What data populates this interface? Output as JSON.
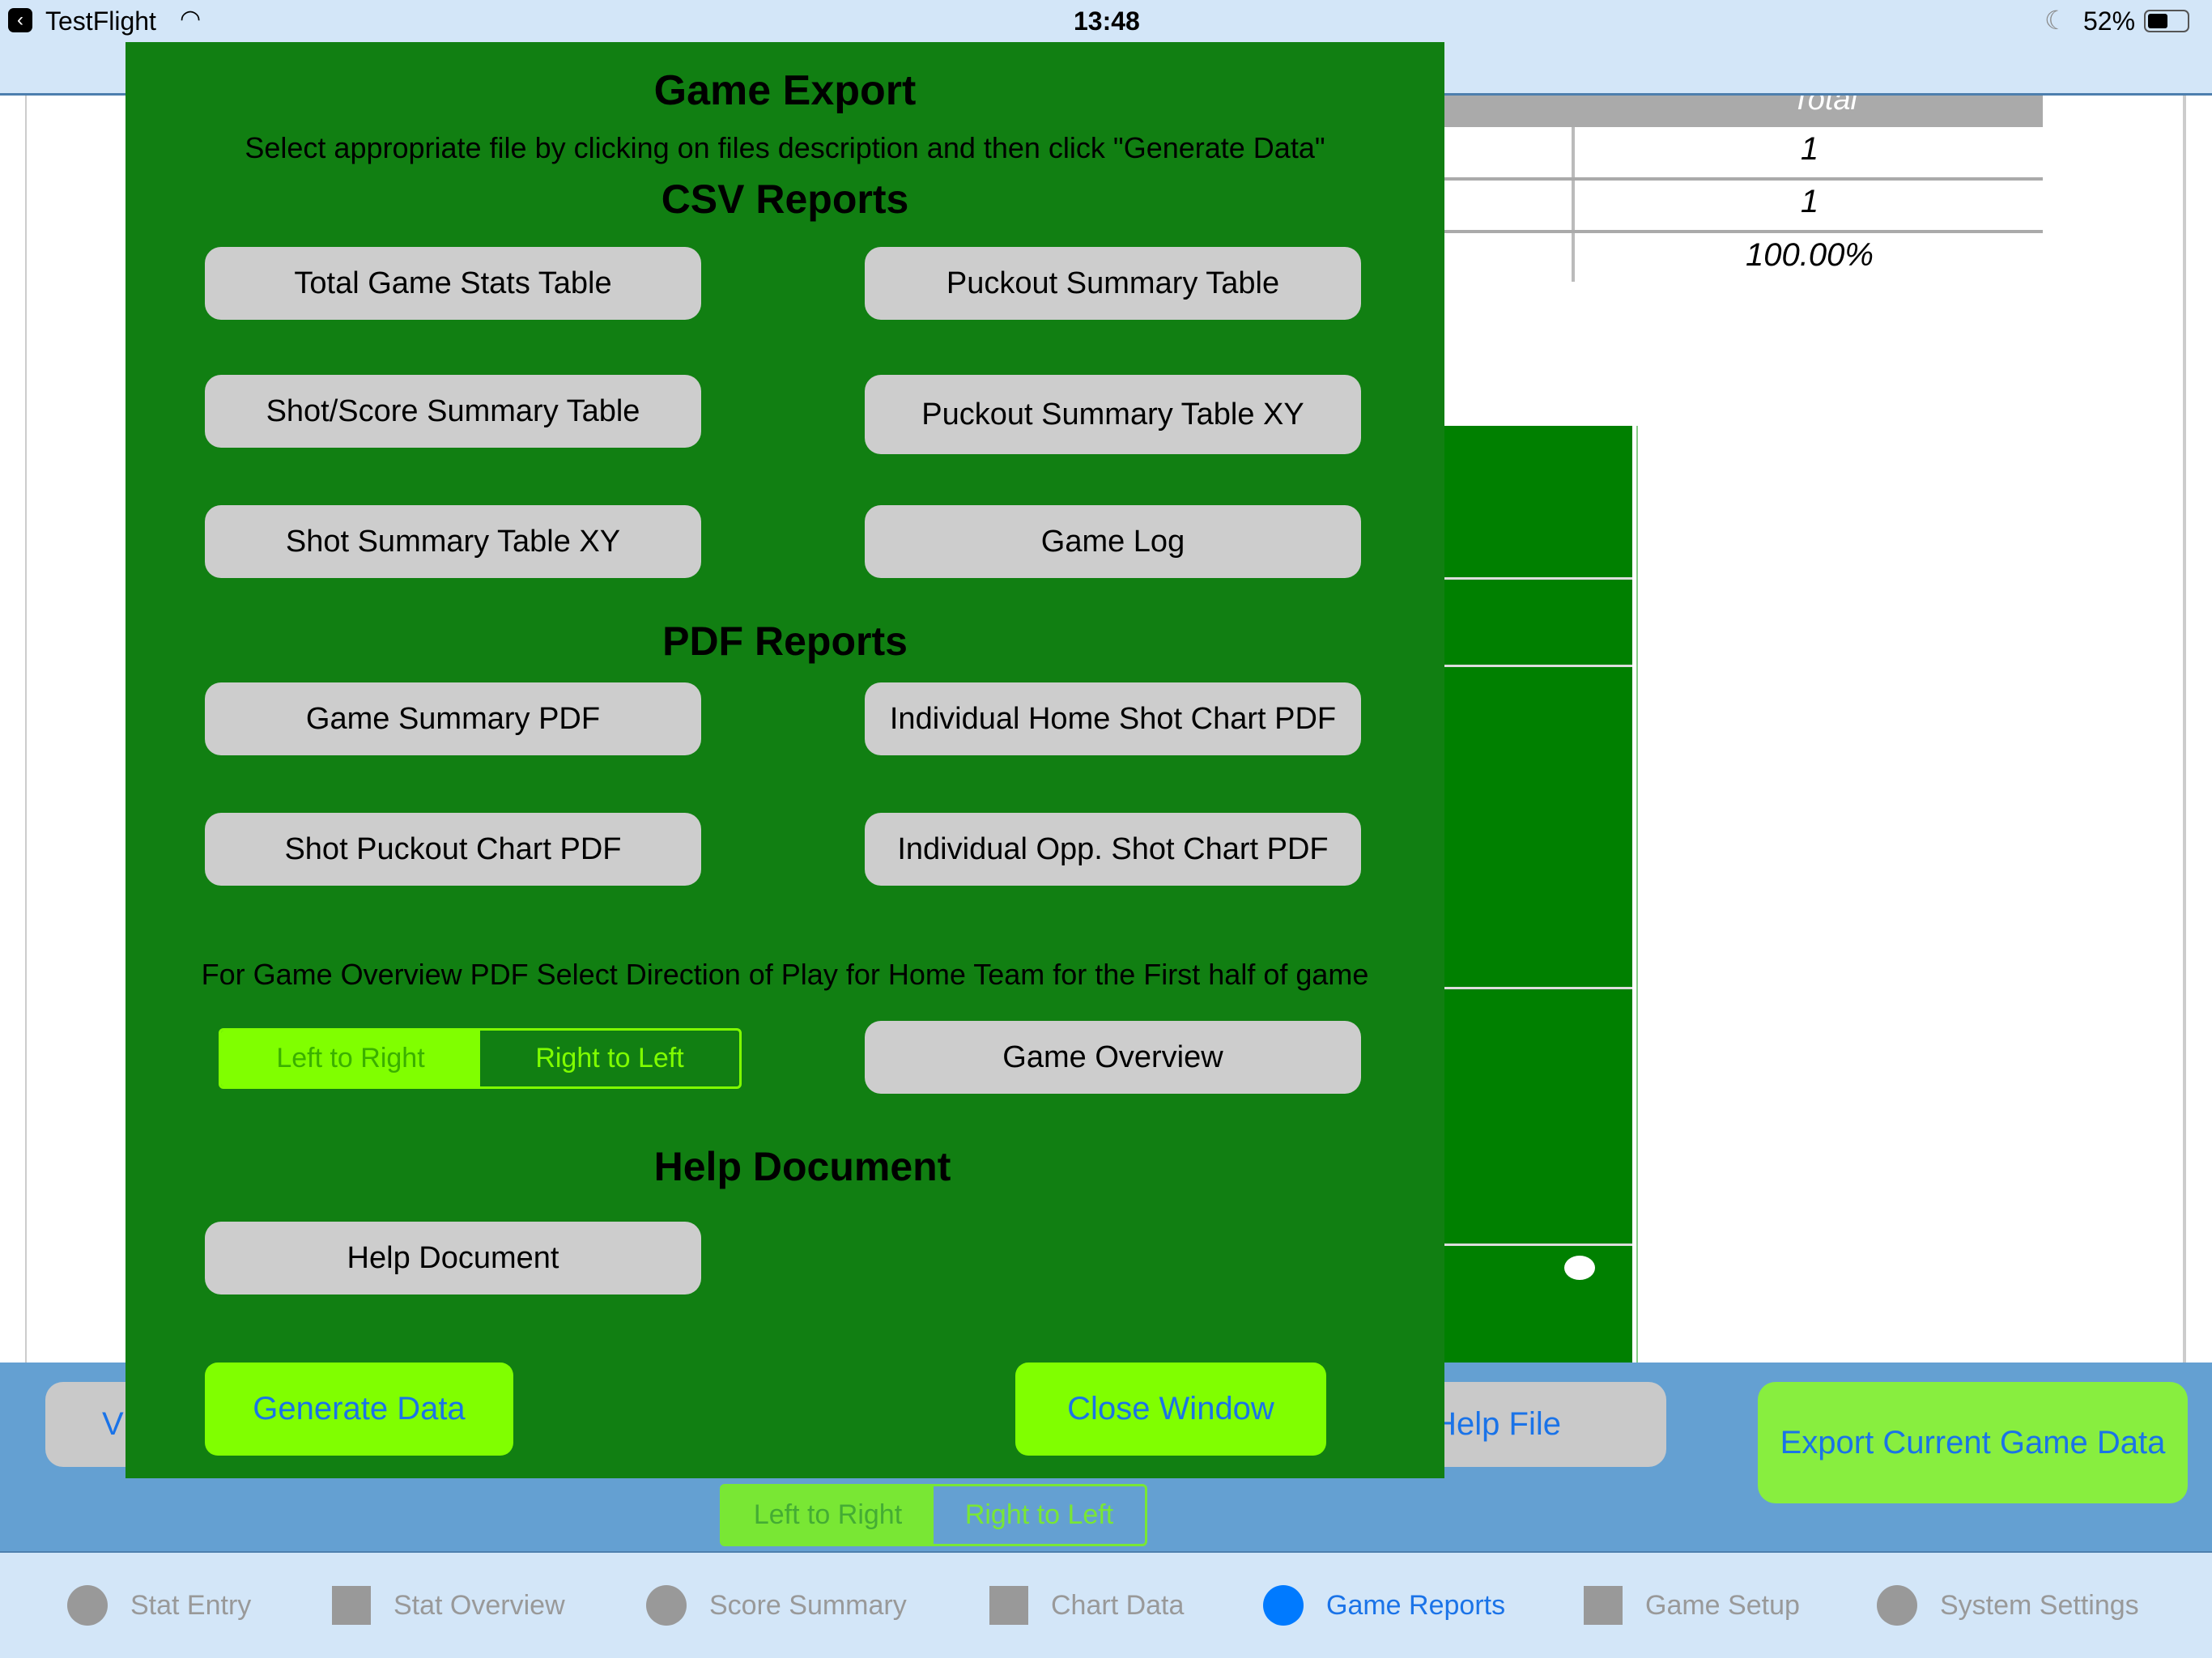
{
  "status_bar": {
    "back_app": "TestFlight",
    "time": "13:48",
    "battery": "52%",
    "battery_level": 0.52
  },
  "background_table": {
    "header": "Total",
    "values": [
      "1",
      "1",
      "100.00%"
    ]
  },
  "bottom_bar": {
    "left_button": "V",
    "help_button": "Help File",
    "export_button": "Export Current Game Data",
    "direction": {
      "options": [
        "Left to Right",
        "Right to Left"
      ],
      "selected": "Left to Right"
    }
  },
  "tabs": [
    {
      "label": "Stat Entry",
      "icon": "circle-icon",
      "active": false
    },
    {
      "label": "Stat Overview",
      "icon": "square-icon",
      "active": false
    },
    {
      "label": "Score Summary",
      "icon": "circle-icon",
      "active": false
    },
    {
      "label": "Chart Data",
      "icon": "square-icon",
      "active": false
    },
    {
      "label": "Game Reports",
      "icon": "circle-icon",
      "active": true
    },
    {
      "label": "Game Setup",
      "icon": "square-icon",
      "active": false
    },
    {
      "label": "System Settings",
      "icon": "circle-icon",
      "active": false
    }
  ],
  "modal": {
    "title": "Game Export",
    "instructions": "Select appropriate file by clicking on files description and then click \"Generate Data\"",
    "csv_heading": "CSV Reports",
    "csv_buttons": [
      "Total Game Stats Table",
      "Puckout Summary Table",
      "Shot/Score Summary Table",
      "Puckout Summary Table XY",
      "Shot Summary Table XY",
      "Game Log"
    ],
    "pdf_heading": "PDF Reports",
    "pdf_buttons": [
      "Game Summary PDF",
      "Individual Home Shot Chart PDF",
      "Shot Puckout Chart PDF",
      "Individual Opp. Shot Chart PDF"
    ],
    "overview_note": "For Game Overview PDF Select Direction of Play for Home Team for the First half of game",
    "direction": {
      "options": [
        "Left to Right",
        "Right to Left"
      ],
      "selected": "Left to Right"
    },
    "overview_button": "Game Overview",
    "help_heading": "Help Document",
    "help_button": "Help Document",
    "generate_button": "Generate Data",
    "close_button": "Close Window"
  },
  "colors": {
    "modal_bg": "#117f12",
    "lime": "#80ff00",
    "accent": "#1a73e8",
    "bar": "#64a0d2"
  }
}
